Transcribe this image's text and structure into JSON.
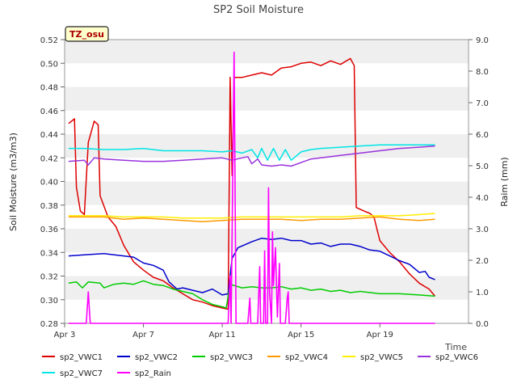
{
  "chart_data": {
    "type": "line",
    "title": "SP2 Soil Moisture",
    "xlabel": "Time",
    "ylabel": "Soil Moisture (m3/m3)",
    "y2label": "Raim (mm)",
    "annotation": "TZ_osu",
    "x_range": [
      0,
      20.5
    ],
    "x_ticks": [
      {
        "day": 0,
        "label": "Apr 3"
      },
      {
        "day": 4,
        "label": "Apr 7"
      },
      {
        "day": 8,
        "label": "Apr 11"
      },
      {
        "day": 12,
        "label": "Apr 15"
      },
      {
        "day": 16,
        "label": "Apr 19"
      }
    ],
    "ylim": [
      0.28,
      0.52
    ],
    "y_ticks": [
      "0.28",
      "0.30",
      "0.32",
      "0.34",
      "0.36",
      "0.38",
      "0.40",
      "0.42",
      "0.44",
      "0.46",
      "0.48",
      "0.50",
      "0.52"
    ],
    "y2lim": [
      0.0,
      9.0
    ],
    "y2_ticks": [
      "0.0",
      "1.0",
      "2.0",
      "3.0",
      "4.0",
      "5.0",
      "6.0",
      "7.0",
      "8.0",
      "9.0"
    ],
    "grid": "horizontal bands",
    "legend_position": "bottom",
    "series": [
      {
        "name": "sp2_VWC1",
        "color": "#dd0000",
        "axis": "left",
        "points": [
          [
            0.2,
            0.449
          ],
          [
            0.5,
            0.453
          ],
          [
            0.6,
            0.395
          ],
          [
            0.8,
            0.375
          ],
          [
            1.0,
            0.372
          ],
          [
            1.2,
            0.433
          ],
          [
            1.5,
            0.451
          ],
          [
            1.7,
            0.448
          ],
          [
            1.8,
            0.388
          ],
          [
            2.2,
            0.37
          ],
          [
            2.6,
            0.362
          ],
          [
            3.0,
            0.346
          ],
          [
            3.5,
            0.332
          ],
          [
            4.0,
            0.325
          ],
          [
            4.5,
            0.319
          ],
          [
            5.0,
            0.316
          ],
          [
            5.5,
            0.31
          ],
          [
            6.0,
            0.305
          ],
          [
            6.5,
            0.3
          ],
          [
            7.0,
            0.298
          ],
          [
            7.5,
            0.295
          ],
          [
            8.0,
            0.293
          ],
          [
            8.3,
            0.292
          ],
          [
            8.4,
            0.488
          ],
          [
            8.5,
            0.405
          ],
          [
            8.6,
            0.488
          ],
          [
            9.0,
            0.488
          ],
          [
            9.5,
            0.49
          ],
          [
            10.0,
            0.492
          ],
          [
            10.5,
            0.49
          ],
          [
            11.0,
            0.496
          ],
          [
            11.5,
            0.497
          ],
          [
            12.0,
            0.5
          ],
          [
            12.5,
            0.501
          ],
          [
            13.0,
            0.498
          ],
          [
            13.5,
            0.502
          ],
          [
            14.0,
            0.499
          ],
          [
            14.5,
            0.504
          ],
          [
            14.7,
            0.498
          ],
          [
            14.8,
            0.378
          ],
          [
            15.2,
            0.375
          ],
          [
            15.5,
            0.373
          ],
          [
            15.7,
            0.37
          ],
          [
            16.0,
            0.35
          ],
          [
            16.5,
            0.34
          ],
          [
            17.0,
            0.332
          ],
          [
            17.5,
            0.322
          ],
          [
            18.0,
            0.314
          ],
          [
            18.5,
            0.309
          ],
          [
            18.8,
            0.303
          ]
        ]
      },
      {
        "name": "sp2_VWC2",
        "color": "#0000cc",
        "axis": "left",
        "points": [
          [
            0.2,
            0.337
          ],
          [
            1.0,
            0.338
          ],
          [
            2.0,
            0.339
          ],
          [
            3.0,
            0.337
          ],
          [
            3.5,
            0.336
          ],
          [
            4.0,
            0.331
          ],
          [
            4.5,
            0.329
          ],
          [
            5.0,
            0.325
          ],
          [
            5.3,
            0.315
          ],
          [
            5.7,
            0.309
          ],
          [
            6.0,
            0.31
          ],
          [
            6.5,
            0.308
          ],
          [
            7.0,
            0.306
          ],
          [
            7.5,
            0.309
          ],
          [
            8.0,
            0.304
          ],
          [
            8.3,
            0.305
          ],
          [
            8.5,
            0.335
          ],
          [
            8.8,
            0.344
          ],
          [
            9.5,
            0.349
          ],
          [
            10.0,
            0.352
          ],
          [
            10.5,
            0.351
          ],
          [
            11.0,
            0.352
          ],
          [
            11.5,
            0.35
          ],
          [
            12.0,
            0.35
          ],
          [
            12.5,
            0.347
          ],
          [
            13.0,
            0.348
          ],
          [
            13.5,
            0.345
          ],
          [
            14.0,
            0.347
          ],
          [
            14.5,
            0.347
          ],
          [
            15.0,
            0.345
          ],
          [
            15.5,
            0.342
          ],
          [
            16.0,
            0.341
          ],
          [
            16.5,
            0.337
          ],
          [
            17.0,
            0.333
          ],
          [
            17.5,
            0.33
          ],
          [
            18.0,
            0.323
          ],
          [
            18.3,
            0.324
          ],
          [
            18.5,
            0.319
          ],
          [
            18.8,
            0.317
          ]
        ]
      },
      {
        "name": "sp2_VWC3",
        "color": "#00cc00",
        "axis": "left",
        "points": [
          [
            0.2,
            0.314
          ],
          [
            0.6,
            0.315
          ],
          [
            0.9,
            0.31
          ],
          [
            1.2,
            0.315
          ],
          [
            1.8,
            0.314
          ],
          [
            2.0,
            0.31
          ],
          [
            2.5,
            0.313
          ],
          [
            3.0,
            0.314
          ],
          [
            3.5,
            0.313
          ],
          [
            4.0,
            0.316
          ],
          [
            4.5,
            0.313
          ],
          [
            5.0,
            0.312
          ],
          [
            5.5,
            0.309
          ],
          [
            6.0,
            0.307
          ],
          [
            6.5,
            0.305
          ],
          [
            7.0,
            0.3
          ],
          [
            7.5,
            0.296
          ],
          [
            8.0,
            0.294
          ],
          [
            8.2,
            0.293
          ],
          [
            8.4,
            0.313
          ],
          [
            9.0,
            0.31
          ],
          [
            9.5,
            0.311
          ],
          [
            10.0,
            0.31
          ],
          [
            10.5,
            0.31
          ],
          [
            11.0,
            0.311
          ],
          [
            11.5,
            0.309
          ],
          [
            12.0,
            0.31
          ],
          [
            12.5,
            0.308
          ],
          [
            13.0,
            0.309
          ],
          [
            13.5,
            0.307
          ],
          [
            14.0,
            0.308
          ],
          [
            14.5,
            0.306
          ],
          [
            15.0,
            0.307
          ],
          [
            16.0,
            0.305
          ],
          [
            17.0,
            0.305
          ],
          [
            18.0,
            0.304
          ],
          [
            18.8,
            0.303
          ]
        ]
      },
      {
        "name": "sp2_VWC4",
        "color": "#ff9900",
        "axis": "left",
        "points": [
          [
            0.2,
            0.37
          ],
          [
            1.0,
            0.37
          ],
          [
            2.0,
            0.37
          ],
          [
            3.0,
            0.368
          ],
          [
            4.0,
            0.369
          ],
          [
            5.0,
            0.368
          ],
          [
            6.0,
            0.367
          ],
          [
            7.0,
            0.366
          ],
          [
            8.0,
            0.367
          ],
          [
            9.0,
            0.368
          ],
          [
            10.0,
            0.368
          ],
          [
            11.0,
            0.368
          ],
          [
            12.0,
            0.367
          ],
          [
            13.0,
            0.368
          ],
          [
            14.0,
            0.368
          ],
          [
            15.0,
            0.369
          ],
          [
            16.0,
            0.37
          ],
          [
            17.0,
            0.368
          ],
          [
            18.0,
            0.367
          ],
          [
            18.8,
            0.368
          ]
        ]
      },
      {
        "name": "sp2_VWC5",
        "color": "#ffee00",
        "axis": "left",
        "points": [
          [
            0.2,
            0.371
          ],
          [
            1.0,
            0.371
          ],
          [
            2.0,
            0.371
          ],
          [
            3.0,
            0.37
          ],
          [
            4.0,
            0.37
          ],
          [
            5.0,
            0.37
          ],
          [
            6.0,
            0.369
          ],
          [
            7.0,
            0.369
          ],
          [
            8.0,
            0.369
          ],
          [
            9.0,
            0.37
          ],
          [
            10.0,
            0.37
          ],
          [
            11.0,
            0.37
          ],
          [
            12.0,
            0.37
          ],
          [
            13.0,
            0.37
          ],
          [
            14.0,
            0.37
          ],
          [
            15.0,
            0.371
          ],
          [
            16.0,
            0.371
          ],
          [
            17.0,
            0.371
          ],
          [
            18.0,
            0.372
          ],
          [
            18.8,
            0.373
          ]
        ]
      },
      {
        "name": "sp2_VWC6",
        "color": "#9933dd",
        "axis": "left",
        "points": [
          [
            0.2,
            0.417
          ],
          [
            1.0,
            0.418
          ],
          [
            1.2,
            0.414
          ],
          [
            1.5,
            0.42
          ],
          [
            2.0,
            0.419
          ],
          [
            3.0,
            0.418
          ],
          [
            4.0,
            0.417
          ],
          [
            5.0,
            0.417
          ],
          [
            6.0,
            0.418
          ],
          [
            7.0,
            0.419
          ],
          [
            8.0,
            0.42
          ],
          [
            8.5,
            0.418
          ],
          [
            9.0,
            0.42
          ],
          [
            9.3,
            0.421
          ],
          [
            9.5,
            0.415
          ],
          [
            9.8,
            0.419
          ],
          [
            10.0,
            0.414
          ],
          [
            10.5,
            0.413
          ],
          [
            11.0,
            0.414
          ],
          [
            11.5,
            0.413
          ],
          [
            12.0,
            0.416
          ],
          [
            12.5,
            0.419
          ],
          [
            13.0,
            0.42
          ],
          [
            14.0,
            0.422
          ],
          [
            15.0,
            0.424
          ],
          [
            16.0,
            0.426
          ],
          [
            17.0,
            0.428
          ],
          [
            18.0,
            0.429
          ],
          [
            18.8,
            0.43
          ]
        ]
      },
      {
        "name": "sp2_VWC7",
        "color": "#00e5e5",
        "axis": "left",
        "points": [
          [
            0.2,
            0.428
          ],
          [
            1.0,
            0.428
          ],
          [
            2.0,
            0.427
          ],
          [
            3.0,
            0.427
          ],
          [
            4.0,
            0.428
          ],
          [
            5.0,
            0.426
          ],
          [
            6.0,
            0.426
          ],
          [
            7.0,
            0.426
          ],
          [
            8.0,
            0.425
          ],
          [
            8.5,
            0.426
          ],
          [
            9.0,
            0.424
          ],
          [
            9.5,
            0.427
          ],
          [
            9.8,
            0.42
          ],
          [
            10.0,
            0.428
          ],
          [
            10.3,
            0.418
          ],
          [
            10.6,
            0.428
          ],
          [
            10.9,
            0.418
          ],
          [
            11.2,
            0.427
          ],
          [
            11.5,
            0.418
          ],
          [
            12.0,
            0.425
          ],
          [
            12.5,
            0.427
          ],
          [
            13.0,
            0.428
          ],
          [
            14.0,
            0.429
          ],
          [
            15.0,
            0.43
          ],
          [
            16.0,
            0.431
          ],
          [
            17.0,
            0.431
          ],
          [
            18.0,
            0.431
          ],
          [
            18.8,
            0.431
          ]
        ]
      },
      {
        "name": "sp2_Rain",
        "color": "#ff00ff",
        "axis": "right",
        "points": [
          [
            0.2,
            0
          ],
          [
            1.1,
            0
          ],
          [
            1.2,
            1.0
          ],
          [
            1.3,
            0
          ],
          [
            8.3,
            0
          ],
          [
            8.4,
            1.5
          ],
          [
            8.45,
            0
          ],
          [
            8.6,
            8.6
          ],
          [
            8.7,
            0
          ],
          [
            9.3,
            0
          ],
          [
            9.4,
            0.8
          ],
          [
            9.45,
            0
          ],
          [
            9.8,
            0
          ],
          [
            9.9,
            1.8
          ],
          [
            9.95,
            0
          ],
          [
            10.1,
            0
          ],
          [
            10.15,
            2.3
          ],
          [
            10.2,
            0
          ],
          [
            10.3,
            0
          ],
          [
            10.35,
            4.3
          ],
          [
            10.4,
            1.0
          ],
          [
            10.5,
            0
          ],
          [
            10.55,
            2.9
          ],
          [
            10.6,
            1.2
          ],
          [
            10.7,
            2.4
          ],
          [
            10.8,
            0.2
          ],
          [
            10.9,
            1.9
          ],
          [
            10.95,
            0
          ],
          [
            11.2,
            0
          ],
          [
            11.3,
            0.8
          ],
          [
            11.35,
            1.0
          ],
          [
            11.4,
            0
          ],
          [
            18.8,
            0
          ]
        ]
      }
    ]
  }
}
